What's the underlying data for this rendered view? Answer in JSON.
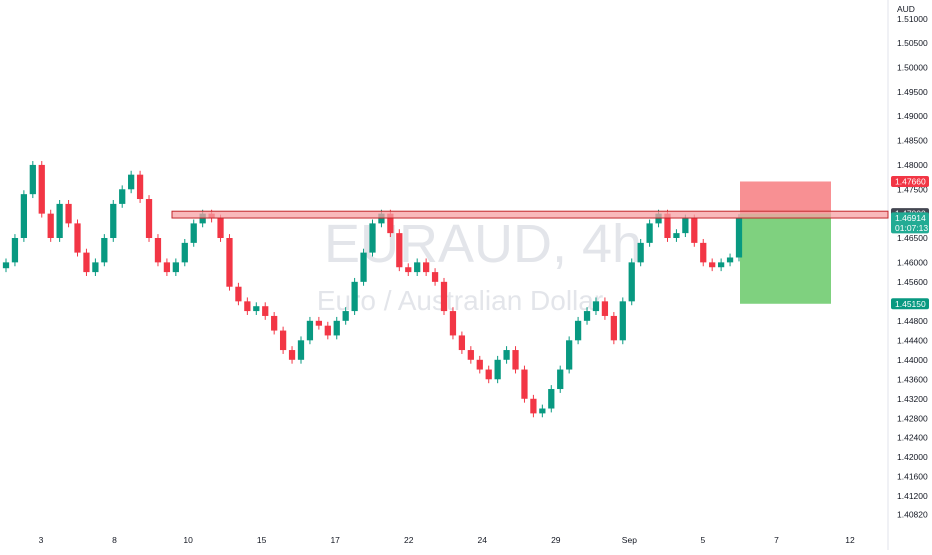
{
  "chart_data": {
    "type": "candlestick",
    "symbol": "EURAUD, 4h",
    "description": "Euro / Australian Dollar",
    "currency": "AUD",
    "y_ticks": [
      "1.40820",
      "1.41200",
      "1.41600",
      "1.42000",
      "1.42400",
      "1.42800",
      "1.43200",
      "1.43600",
      "1.44000",
      "1.44400",
      "1.44800",
      "1.45200",
      "1.45600",
      "1.46000",
      "1.46500",
      "1.47000",
      "1.47500",
      "1.48000",
      "1.48500",
      "1.49000",
      "1.49500",
      "1.50000",
      "1.50500",
      "1.51000"
    ],
    "x_ticks": [
      "3",
      "8",
      "10",
      "15",
      "17",
      "22",
      "24",
      "29",
      "Sep",
      "5",
      "7",
      "12"
    ],
    "ylim": [
      1.4065,
      1.5118
    ],
    "resistance_zone": [
      1.4691,
      1.4705
    ],
    "position": {
      "entry": 1.47,
      "stop": 1.4766,
      "target": 1.4515,
      "stop_label": "1.47660",
      "target_label": "1.45150",
      "entry_label": "1.47000"
    },
    "last_price_label": "1.46914",
    "countdown": "01:07:13",
    "closes": [
      1.46,
      1.465,
      1.474,
      1.48,
      1.47,
      1.465,
      1.472,
      1.468,
      1.462,
      1.458,
      1.46,
      1.465,
      1.472,
      1.475,
      1.478,
      1.473,
      1.465,
      1.46,
      1.458,
      1.46,
      1.464,
      1.468,
      1.47,
      1.469,
      1.465,
      1.455,
      1.452,
      1.45,
      1.451,
      1.449,
      1.446,
      1.442,
      1.44,
      1.444,
      1.448,
      1.447,
      1.445,
      1.448,
      1.45,
      1.456,
      1.462,
      1.468,
      1.47,
      1.466,
      1.459,
      1.458,
      1.46,
      1.458,
      1.456,
      1.45,
      1.445,
      1.442,
      1.44,
      1.438,
      1.436,
      1.44,
      1.442,
      1.438,
      1.432,
      1.429,
      1.43,
      1.434,
      1.438,
      1.444,
      1.448,
      1.45,
      1.452,
      1.449,
      1.444,
      1.452,
      1.46,
      1.464,
      1.468,
      1.47,
      1.465,
      1.466,
      1.469,
      1.464,
      1.46,
      1.459,
      1.46,
      1.461,
      1.4691
    ]
  }
}
